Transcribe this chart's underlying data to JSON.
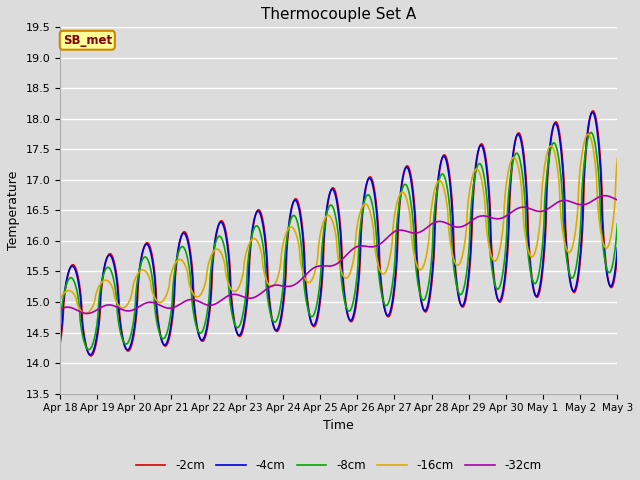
{
  "title": "Thermocouple Set A",
  "xlabel": "Time",
  "ylabel": "Temperature",
  "ylim": [
    13.5,
    19.5
  ],
  "yticks": [
    13.5,
    14.0,
    14.5,
    15.0,
    15.5,
    16.0,
    16.5,
    17.0,
    17.5,
    18.0,
    18.5,
    19.0,
    19.5
  ],
  "xtick_labels": [
    "Apr 18",
    "Apr 19",
    "Apr 20",
    "Apr 21",
    "Apr 22",
    "Apr 23",
    "Apr 24",
    "Apr 25",
    "Apr 26",
    "Apr 27",
    "Apr 28",
    "Apr 29",
    "Apr 30",
    "May 1",
    "May 2",
    "May 3"
  ],
  "series_colors": [
    "#dd0000",
    "#0000dd",
    "#00aa00",
    "#ddaa00",
    "#aa00aa"
  ],
  "series_labels": [
    "-2cm",
    "-4cm",
    "-8cm",
    "-16cm",
    "-32cm"
  ],
  "background_color": "#dcdcdc",
  "plot_bg_color": "#dcdcdc",
  "grid_color": "#ffffff",
  "annotation_text": "SB_met",
  "annotation_bg": "#ffff99",
  "annotation_border": "#cc8800",
  "linewidth": 1.2
}
